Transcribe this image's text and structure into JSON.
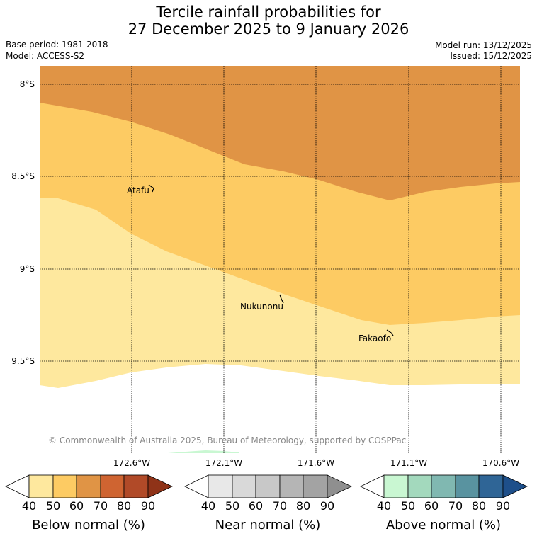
{
  "title": {
    "line1": "Tercile rainfall probabilities for",
    "line2": "27 December 2025 to 9 January 2026"
  },
  "meta": {
    "base_period": "Base period: 1981-2018",
    "model": "Model: ACCESS-S2",
    "model_run": "Model run: 13/12/2025",
    "issued": "Issued: 15/12/2025"
  },
  "map": {
    "lat_ticks": [
      "8°S",
      "8.5°S",
      "9°S",
      "9.5°S"
    ],
    "lon_ticks": [
      "172.6°W",
      "172.1°W",
      "171.6°W",
      "171.1°W",
      "170.6°W"
    ],
    "places": [
      {
        "name": "Atafu"
      },
      {
        "name": "Nukunonu"
      },
      {
        "name": "Fakaofo"
      }
    ],
    "copyright": "© Commonwealth of Australia 2025, Bureau of Meteorology, supported by COSPPac",
    "category_colors": {
      "below_40_50": "#fee89e",
      "below_50_60": "#fdcb63",
      "below_60_70": "#e09445"
    }
  },
  "legends": [
    {
      "label": "Below normal (%)",
      "ticks": [
        "40",
        "50",
        "60",
        "70",
        "80",
        "90"
      ],
      "colors": [
        "#ffffff",
        "#fee89e",
        "#fdcb63",
        "#e09445",
        "#cf6431",
        "#b14a28",
        "#8f3318"
      ]
    },
    {
      "label": "Near normal (%)",
      "ticks": [
        "40",
        "50",
        "60",
        "70",
        "80",
        "90"
      ],
      "colors": [
        "#ffffff",
        "#e8e8e8",
        "#d9d9d9",
        "#c8c8c8",
        "#b5b5b5",
        "#a3a3a3",
        "#8f8f8f"
      ]
    },
    {
      "label": "Above normal (%)",
      "ticks": [
        "40",
        "50",
        "60",
        "70",
        "80",
        "90"
      ],
      "colors": [
        "#ffffff",
        "#c9f7d2",
        "#a3d9bd",
        "#80b8b1",
        "#5993a0",
        "#2f6596",
        "#1e4f8a"
      ]
    }
  ]
}
